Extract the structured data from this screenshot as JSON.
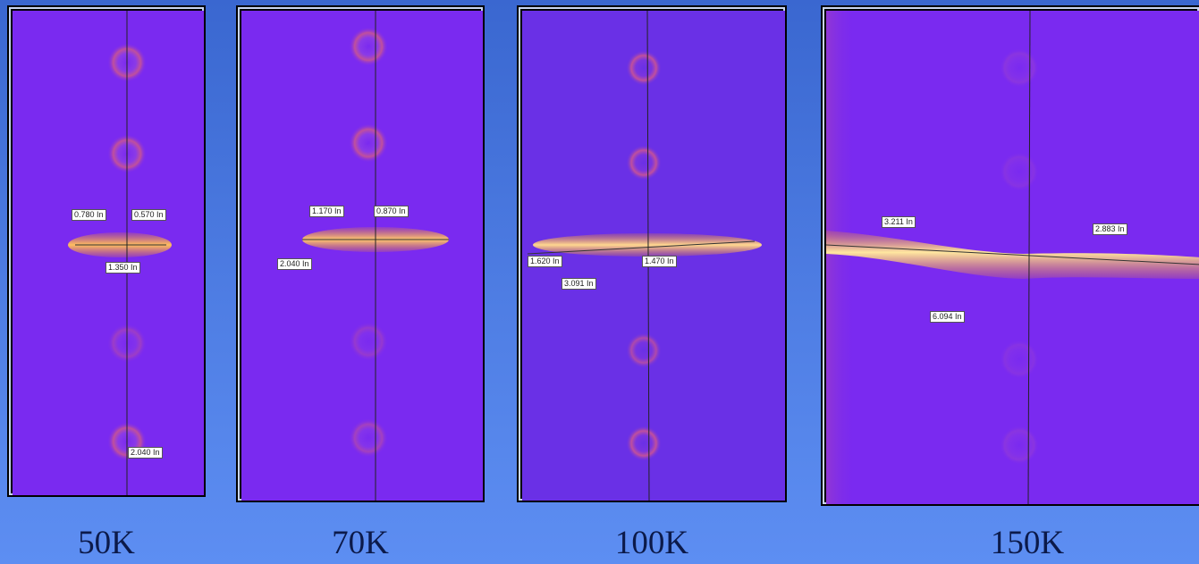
{
  "panels": [
    {
      "caption": "50K",
      "labels": [
        "0.780 In",
        "0.570 In",
        "1.350 In",
        "2.040 In"
      ]
    },
    {
      "caption": "70K",
      "labels": [
        "1.170 In",
        "0.870 In",
        "2.040 In"
      ]
    },
    {
      "caption": "100K",
      "labels": [
        "1.620 In",
        "1.470 In",
        "3.091 In"
      ]
    },
    {
      "caption": "150K",
      "labels": [
        "3.211 In",
        "2.883 In",
        "6.094 In"
      ]
    }
  ],
  "colors": {
    "background": "#4f7ee4",
    "field": "#7a2af0",
    "ring": "#c0509c",
    "crack_hot": "#ffe7a0",
    "crack_mid": "#f08a2a"
  }
}
